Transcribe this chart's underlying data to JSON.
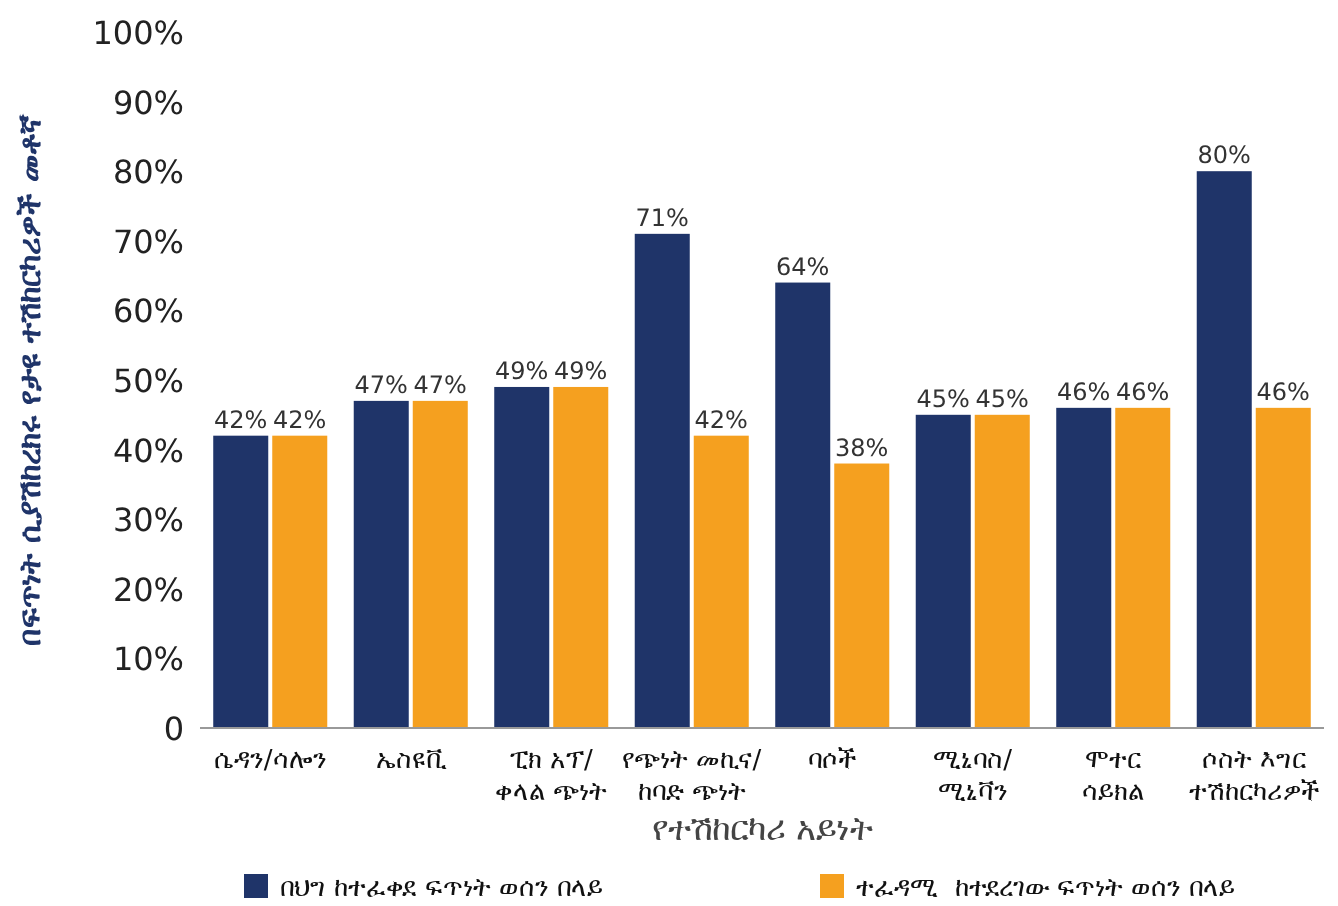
{
  "chart_data": {
    "type": "bar",
    "xlabel": "የተሽከርካሪ አይነት",
    "ylabel": "በፍጥነት ሲያሽከረክሩ የታዩ ተሽከርካሪዎች መቶኛ",
    "categories": [
      "ሴዳን/ሳሎን",
      "ኤስዩቪ",
      "ፒክ አፕ/\nቀላል ጭነት",
      "የጭነት መኪና/\nከባድ ጭነት",
      "ባሶች",
      "ሚኒባስ/\nሚኒቫን",
      "ሞተር\nሳይክል",
      "ሶስት እግር\nተሽከርካሪዎች"
    ],
    "series": [
      {
        "name": "በህግ ከተፈቀደ ፍጥነት ወሰን በላይ",
        "color": "#1f3469",
        "values": [
          42,
          47,
          49,
          71,
          64,
          45,
          46,
          80
        ],
        "value_labels": [
          "42%",
          "47%",
          "49%",
          "71%",
          "64%",
          "45%",
          "46%",
          "80%"
        ]
      },
      {
        "name": "ተፈዳሚ  ከተደረገው ፍጥነት ወሰን በላይ",
        "color": "#f5a01f",
        "values": [
          42,
          47,
          49,
          42,
          38,
          45,
          46,
          46
        ],
        "value_labels": [
          "42%",
          "47%",
          "49%",
          "42%",
          "38%",
          "45%",
          "46%",
          "46%"
        ]
      }
    ],
    "ylim": [
      0,
      100
    ],
    "yticks": [
      0,
      {
        "value": 10,
        "label": "10%"
      },
      {
        "value": 20,
        "label": "20%"
      },
      {
        "value": 30,
        "label": "30%"
      },
      {
        "value": 40,
        "label": "40%"
      },
      {
        "value": 50,
        "label": "50%"
      },
      {
        "value": 60,
        "label": "60%"
      },
      {
        "value": 70,
        "label": "70%"
      },
      {
        "value": 80,
        "label": "80%"
      },
      {
        "value": 90,
        "label": "90%"
      },
      {
        "value": 100,
        "label": "100%"
      }
    ],
    "grid": false,
    "legend": "bottom"
  }
}
